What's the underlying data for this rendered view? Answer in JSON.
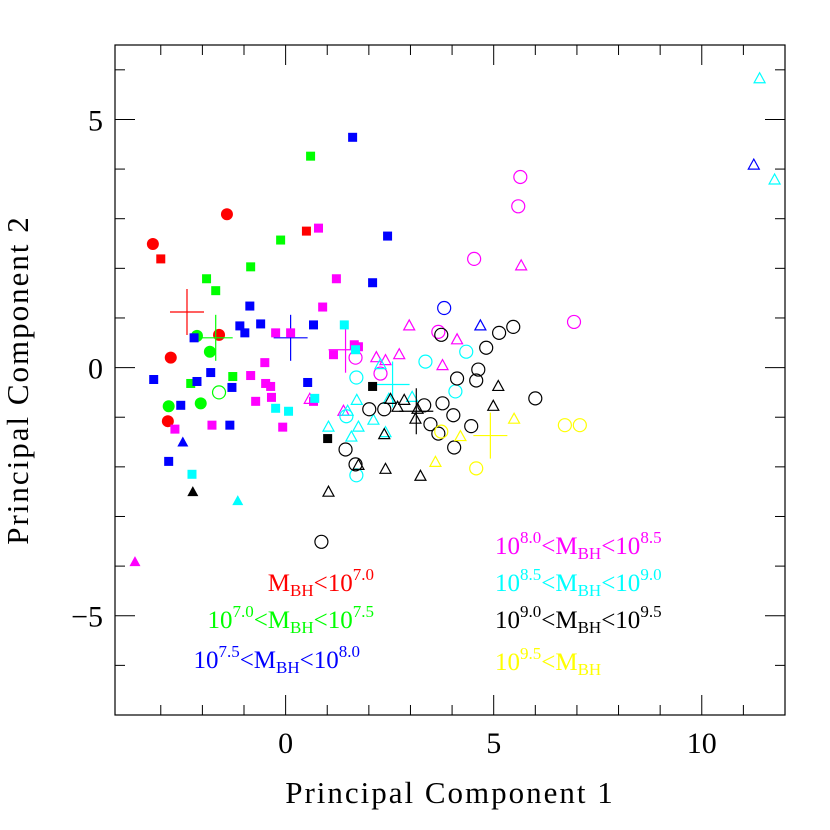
{
  "chart_data": {
    "type": "scatter",
    "xlabel": "Principal Component 1",
    "ylabel": "Principal Component 2",
    "xlim": [
      -4.1,
      12
    ],
    "ylim": [
      -7,
      6.5
    ],
    "xticks": [
      0,
      5,
      10
    ],
    "yticks": [
      {
        "value": -5,
        "label": "−5"
      },
      0,
      5
    ],
    "x_minor_ticks": [
      -3,
      -2,
      -1,
      1,
      2,
      3,
      4,
      6,
      7,
      8,
      9,
      11
    ],
    "y_minor_ticks": [
      -6,
      -4,
      -3,
      -2,
      -1,
      1,
      2,
      3,
      4,
      6
    ],
    "series": [
      {
        "name": "M_{BH}<10^{7.0}",
        "color": "#ff0000",
        "markers": [
          "c",
          "s",
          "c",
          "s",
          "c",
          "c",
          "c"
        ],
        "x": [
          -3.19,
          -3.0,
          -1.41,
          0.5,
          -1.6,
          -2.76,
          -2.83
        ],
        "y": [
          2.49,
          2.19,
          3.09,
          2.75,
          0.66,
          0.2,
          -1.08
        ],
        "mean": {
          "x": -2.37,
          "y": 1.12
        }
      },
      {
        "name": "10^{7.0}<M_{BH}<10^{7.5}",
        "color": "#00ff00",
        "markers": [
          "s",
          "s",
          "s",
          "s",
          "s",
          "c",
          "c",
          "c",
          "c",
          "s",
          "oc",
          "s"
        ],
        "x": [
          0.6,
          -0.12,
          -0.84,
          -1.9,
          -1.68,
          -2.13,
          -1.82,
          -2.81,
          -2.04,
          -2.28,
          -1.6,
          -1.27
        ],
        "y": [
          4.26,
          2.57,
          2.03,
          1.79,
          1.55,
          0.64,
          0.32,
          -0.78,
          -0.72,
          -0.32,
          -0.5,
          -0.18
        ],
        "mean": {
          "x": -1.68,
          "y": 0.6
        }
      },
      {
        "name": "10^{7.5}<M_{BH}<10^{8.0}",
        "color": "#0000ff",
        "markers": [
          "s",
          "s",
          "s",
          "s",
          "s",
          "s",
          "s",
          "s",
          "s",
          "s",
          "s",
          "s",
          "t",
          "s",
          "s",
          "s",
          "s",
          "s",
          "oc",
          "ot",
          "ot"
        ],
        "x": [
          1.61,
          2.45,
          2.09,
          -0.86,
          -1.1,
          -0.98,
          -0.6,
          0.67,
          -2.2,
          -3.17,
          -2.52,
          -2.81,
          -2.47,
          -2.13,
          -1.8,
          -1.29,
          -1.34,
          0.53,
          3.81,
          4.68,
          11.25
        ],
        "y": [
          4.64,
          2.65,
          1.71,
          1.24,
          0.84,
          0.7,
          0.88,
          0.86,
          0.6,
          -0.24,
          -0.76,
          -1.89,
          -1.51,
          -0.28,
          -0.1,
          -0.4,
          -1.16,
          -0.3,
          1.2,
          0.84,
          4.08
        ],
        "mean": {
          "x": 0.12,
          "y": 0.6
        }
      },
      {
        "name": "10^{8.0}<M_{BH}<10^{8.5}",
        "color": "#ff00ff",
        "markers": [
          "s",
          "s",
          "s",
          "s",
          "s",
          "s",
          "s",
          "s",
          "s",
          "s",
          "s",
          "s",
          "s",
          "s",
          "s",
          "s",
          "s",
          "s",
          "t",
          "oc",
          "oc",
          "oc",
          "oc",
          "oc",
          "oc",
          "oc",
          "ot",
          "ot",
          "ot",
          "ot",
          "ot",
          "ot",
          "ot",
          "ot",
          "ot"
        ],
        "x": [
          0.79,
          1.22,
          0.89,
          -0.24,
          0.12,
          1.65,
          1.15,
          1.75,
          -0.5,
          -0.84,
          -0.48,
          -0.36,
          -0.34,
          -0.72,
          -0.07,
          -1.77,
          -2.66,
          0.67,
          -3.62,
          5.64,
          5.59,
          4.53,
          6.93,
          3.67,
          1.68,
          2.28,
          5.66,
          2.97,
          4.12,
          3.77,
          2.73,
          2.18,
          2.4,
          1.39,
          0.58
        ],
        "y": [
          2.81,
          1.79,
          1.22,
          0.7,
          0.7,
          0.46,
          0.26,
          0.42,
          0.1,
          -0.16,
          -0.32,
          -0.38,
          -0.6,
          -0.68,
          -1.2,
          -1.16,
          -1.24,
          -0.68,
          -3.92,
          3.84,
          3.25,
          2.19,
          0.92,
          0.72,
          0.2,
          -0.12,
          2.05,
          0.84,
          0.56,
          0.04,
          0.26,
          0.2,
          0.14,
          -0.88,
          -0.64
        ],
        "mean": {
          "x": 1.44,
          "y": 0.36
        }
      },
      {
        "name": "10^{8.5}<M_{BH}<10^{9.0}",
        "color": "#00ffff",
        "markers": [
          "ot",
          "ot",
          "s",
          "s",
          "s",
          "s",
          "s",
          "s",
          "t",
          "oc",
          "oc",
          "oc",
          "oc",
          "oc",
          "oc",
          "ot",
          "ot",
          "ot",
          "ot",
          "ot",
          "ot",
          "ot",
          "ot",
          "ot",
          "ot"
        ],
        "x": [
          11.39,
          11.75,
          1.41,
          1.68,
          0.7,
          -0.24,
          0.07,
          -2.25,
          -1.15,
          1.7,
          3.36,
          4.34,
          4.08,
          1.46,
          1.7,
          1.49,
          1.71,
          1.75,
          2.48,
          2.11,
          2.4,
          3.04,
          1.03,
          1.58,
          2.28
        ],
        "y": [
          5.82,
          3.78,
          0.86,
          0.36,
          -0.62,
          -0.82,
          -0.88,
          -2.15,
          -2.69,
          -0.2,
          0.12,
          0.32,
          -0.48,
          -0.98,
          -2.17,
          -0.88,
          -0.66,
          -1.2,
          -0.64,
          -1.06,
          -1.31,
          -0.6,
          -1.2,
          -1.4,
          0.06
        ],
        "mean": {
          "x": 2.57,
          "y": -0.34
        }
      },
      {
        "name": "10^{9.0}<M_{BH}<10^{9.5}",
        "color": "#000000",
        "markers": [
          "s",
          "s",
          "t",
          "oc",
          "oc",
          "oc",
          "oc",
          "oc",
          "oc",
          "oc",
          "oc",
          "oc",
          "oc",
          "oc",
          "oc",
          "oc",
          "oc",
          "oc",
          "oc",
          "oc",
          "oc",
          "oc",
          "oc",
          "ot",
          "ot",
          "ot",
          "ot",
          "ot",
          "ot",
          "ot",
          "ot",
          "ot",
          "ot",
          "ot",
          "ot"
        ],
        "x": [
          2.09,
          1.01,
          -2.23,
          0.86,
          3.74,
          5.13,
          4.82,
          5.47,
          4.63,
          4.58,
          4.12,
          3.77,
          6.0,
          2.01,
          2.37,
          3.33,
          4.03,
          3.48,
          3.67,
          4.46,
          4.05,
          1.68,
          1.44,
          5.11,
          4.99,
          2.85,
          2.52,
          3.17,
          2.69,
          2.37,
          1.75,
          1.03,
          2.4,
          3.24,
          3.12
        ],
        "y": [
          -0.38,
          -1.43,
          -2.51,
          -3.51,
          0.66,
          0.7,
          0.4,
          0.82,
          -0.04,
          -0.26,
          -0.22,
          -0.72,
          -0.62,
          -0.84,
          -0.84,
          -0.76,
          -0.96,
          -1.14,
          -1.33,
          -1.18,
          -1.61,
          -1.95,
          -1.65,
          -0.38,
          -0.78,
          -0.66,
          -0.64,
          -0.84,
          -0.8,
          -1.35,
          -1.97,
          -2.51,
          -2.05,
          -2.19,
          -1.04
        ],
        "mean": {
          "x": 3.14,
          "y": -0.88
        }
      },
      {
        "name": "10^{9.5}<M_{BH}",
        "color": "#ffff00",
        "markers": [
          "oc",
          "oc",
          "oc",
          "oc",
          "ot",
          "ot",
          "ot"
        ],
        "x": [
          6.71,
          7.07,
          4.58,
          3.74,
          5.49,
          3.6,
          4.2
        ],
        "y": [
          -1.16,
          -1.16,
          -2.03,
          -1.29,
          -1.04,
          -1.91,
          -1.39
        ],
        "mean": {
          "x": 4.92,
          "y": -1.37
        }
      }
    ]
  }
}
